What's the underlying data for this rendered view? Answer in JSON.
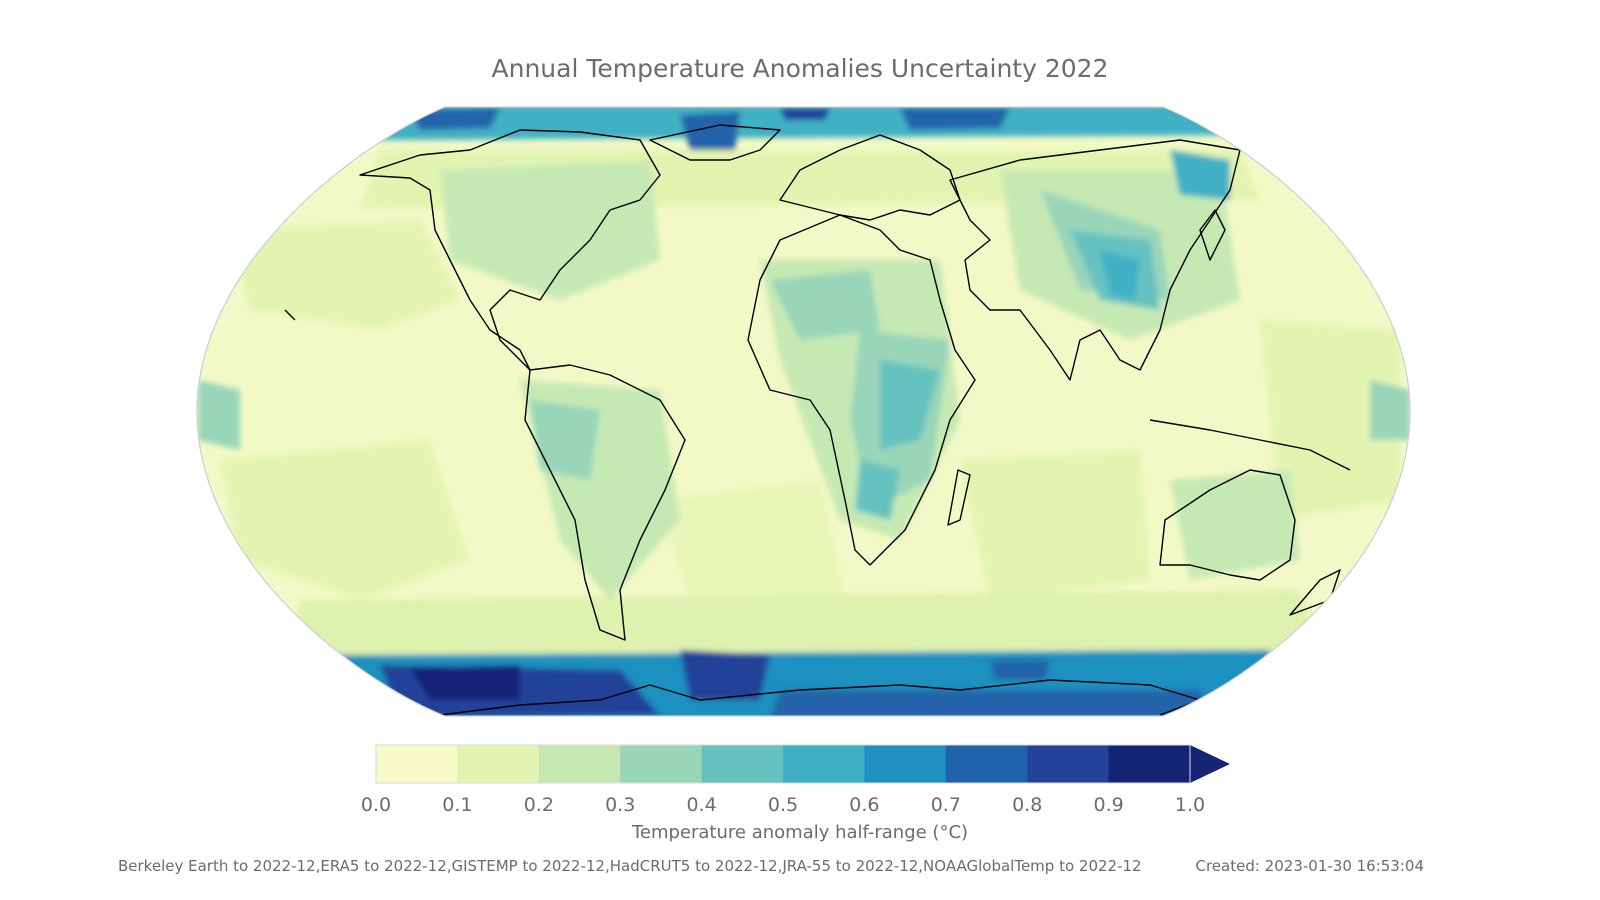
{
  "title": "Annual Temperature Anomalies Uncertainty 2022",
  "colorbar": {
    "label": "Temperature anomaly half-range (°C)",
    "ticks": [
      "0.0",
      "0.1",
      "0.2",
      "0.3",
      "0.4",
      "0.5",
      "0.6",
      "0.7",
      "0.8",
      "0.9",
      "1.0"
    ],
    "colors": [
      "#f6fbc7",
      "#e3f4b1",
      "#c6e9b4",
      "#99d5b9",
      "#66c2bf",
      "#3fb0c4",
      "#1f91c0",
      "#2163aa",
      "#24429a",
      "#162474"
    ],
    "extend": "max"
  },
  "map": {
    "projection": "Robinson-like",
    "ocean_base_color": "#f1f8c2",
    "coastline_color": "#000000"
  },
  "footer": {
    "sources": "Berkeley Earth to 2022-12,ERA5 to 2022-12,GISTEMP to 2022-12,HadCRUT5 to 2022-12,JRA-55 to 2022-12,NOAAGlobalTemp to 2022-12",
    "created": "Created: 2023-01-30 16:53:04"
  }
}
